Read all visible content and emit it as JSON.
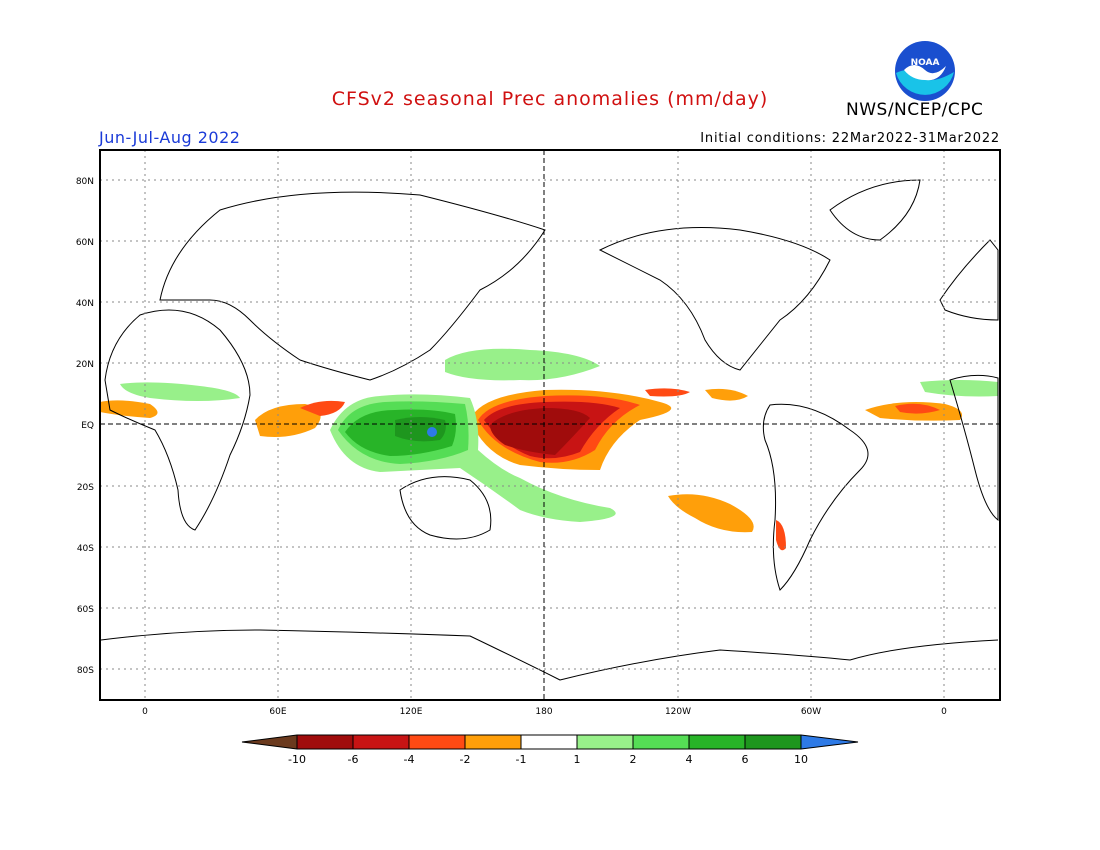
{
  "map": {
    "title": "CFSv2 seasonal Prec anomalies (mm/day)",
    "agency": "NWS/NCEP/CPC",
    "logo_text": "NOAA",
    "season": "Jun-Jul-Aug 2022",
    "initial_conditions": "Initial conditions: 22Mar2022-31Mar2022",
    "lat_labels": [
      "80N",
      "60N",
      "40N",
      "20N",
      "EQ",
      "20S",
      "40S",
      "60S",
      "80S"
    ],
    "lon_labels": [
      "0",
      "60E",
      "120E",
      "180",
      "120W",
      "60W",
      "0"
    ],
    "colors": {
      "title": "#d01010",
      "season": "#1a3ad8",
      "frame": "#000000",
      "lt_m10": "#6b3a1e",
      "m10_m6": "#a00c0c",
      "m6_m4": "#c81414",
      "m4_m2": "#ff4a14",
      "m2_m1": "#ff9f0a",
      "m1_1": "#ffffff",
      "p1_2": "#98f08a",
      "p2_4": "#55dd55",
      "p4_6": "#28b428",
      "p6_10": "#1e961e",
      "gt_10": "#2e7ae6"
    }
  },
  "legend": {
    "labels": [
      "-10",
      "-6",
      "-4",
      "-2",
      "-1",
      "1",
      "2",
      "4",
      "6",
      "10"
    ]
  }
}
